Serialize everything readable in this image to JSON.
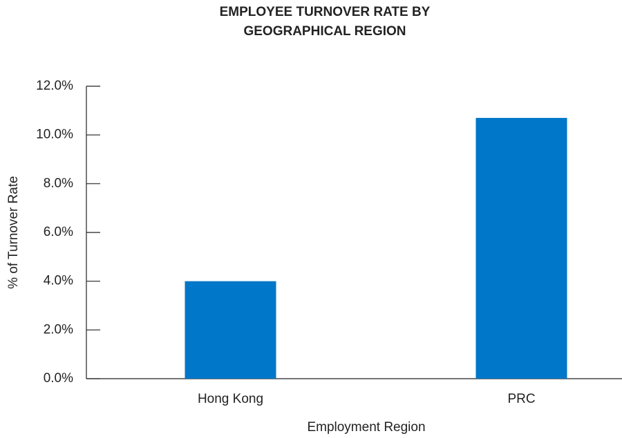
{
  "chart_data": {
    "type": "bar",
    "title": "EMPLOYEE TURNOVER RATE BY GEOGRAPHICAL REGION",
    "x_label": "Employment Region",
    "y_label": "% of Turnover Rate",
    "categories": [
      "Hong Kong",
      "PRC"
    ],
    "values": [
      4.0,
      10.7
    ],
    "color": "#0077c8",
    "ylim": [
      0,
      12
    ],
    "yticks": [
      {
        "value": 0,
        "label": "0.0%"
      },
      {
        "value": 2,
        "label": "2.0%"
      },
      {
        "value": 4,
        "label": "4.0%"
      },
      {
        "value": 6,
        "label": "6.0%"
      },
      {
        "value": 8,
        "label": "8.0%"
      },
      {
        "value": 10,
        "label": "10.0%"
      },
      {
        "value": 12,
        "label": "12.0%"
      }
    ],
    "grid": false
  }
}
